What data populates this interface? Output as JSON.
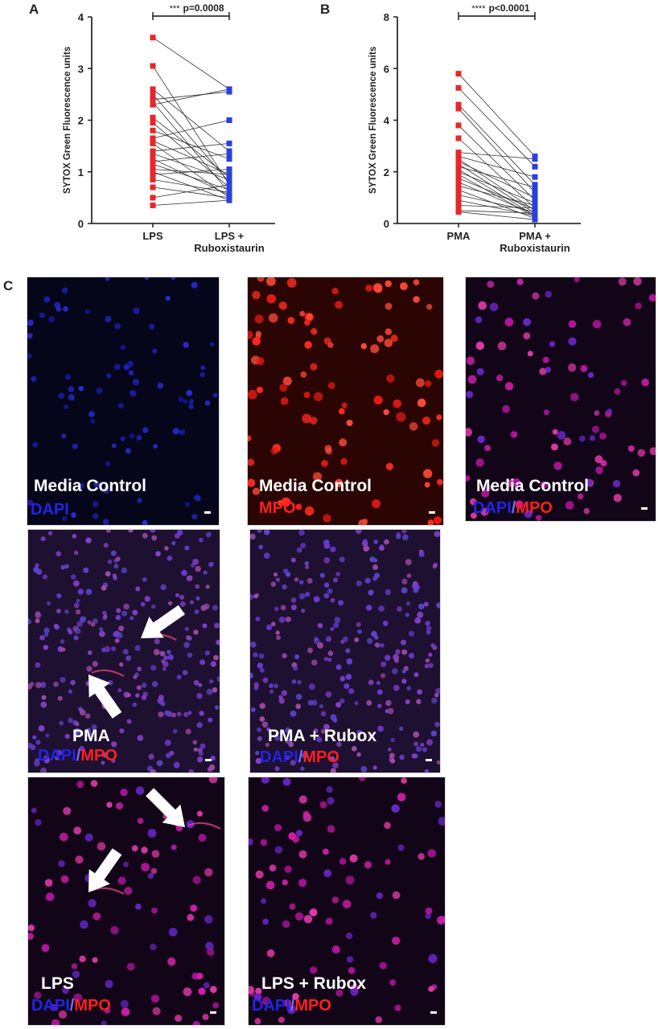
{
  "panels": {
    "a_letter": "A",
    "b_letter": "B",
    "c_letter": "C"
  },
  "chart_data": [
    {
      "id": "A",
      "type": "scatter",
      "ylabel": "SYTOX Green Fluorescence units",
      "xlabel": "",
      "categories": [
        "LPS",
        "LPS + Ruboxistaurin"
      ],
      "ylim": [
        0,
        4
      ],
      "yticks": [
        0,
        1,
        2,
        3,
        4
      ],
      "colors": [
        "#e8262a",
        "#2b3fe0"
      ],
      "significance": {
        "stars": "***",
        "text": "p=0.0008"
      },
      "pairs": [
        [
          3.6,
          2.6
        ],
        [
          3.05,
          0.75
        ],
        [
          2.6,
          1.4
        ],
        [
          2.5,
          0.8
        ],
        [
          2.4,
          2.55
        ],
        [
          2.35,
          0.6
        ],
        [
          2.3,
          2.6
        ],
        [
          2.05,
          0.9
        ],
        [
          1.95,
          0.7
        ],
        [
          1.8,
          1.25
        ],
        [
          1.65,
          2.0
        ],
        [
          1.6,
          0.95
        ],
        [
          1.55,
          0.5
        ],
        [
          1.4,
          1.55
        ],
        [
          1.35,
          0.85
        ],
        [
          1.25,
          0.55
        ],
        [
          1.2,
          1.35
        ],
        [
          1.15,
          0.65
        ],
        [
          1.05,
          0.95
        ],
        [
          1.0,
          0.45
        ],
        [
          0.95,
          1.05
        ],
        [
          0.85,
          0.6
        ],
        [
          0.7,
          0.5
        ],
        [
          0.5,
          0.75
        ],
        [
          0.35,
          0.45
        ]
      ]
    },
    {
      "id": "B",
      "type": "scatter",
      "ylabel": "SYTOX Green Fluorescence units",
      "xlabel": "",
      "categories": [
        "PMA",
        "PMA + Ruboxistaurin"
      ],
      "ylim": [
        0,
        8
      ],
      "yticks": [
        0,
        2,
        4,
        6,
        8
      ],
      "colors": [
        "#e8262a",
        "#2b3fe0"
      ],
      "significance": {
        "stars": "****",
        "text": "p<0.0001"
      },
      "pairs": [
        [
          5.8,
          2.6
        ],
        [
          5.25,
          2.2
        ],
        [
          4.6,
          1.5
        ],
        [
          4.45,
          1.2
        ],
        [
          3.8,
          0.9
        ],
        [
          3.3,
          0.6
        ],
        [
          2.75,
          2.5
        ],
        [
          2.6,
          1.8
        ],
        [
          2.5,
          0.5
        ],
        [
          2.4,
          1.0
        ],
        [
          2.3,
          0.4
        ],
        [
          2.2,
          1.4
        ],
        [
          2.1,
          0.3
        ],
        [
          2.0,
          0.8
        ],
        [
          1.9,
          0.25
        ],
        [
          1.75,
          0.55
        ],
        [
          1.6,
          0.35
        ],
        [
          1.45,
          0.7
        ],
        [
          1.3,
          0.2
        ],
        [
          1.1,
          0.45
        ],
        [
          0.9,
          0.3
        ],
        [
          0.7,
          0.6
        ],
        [
          0.5,
          0.4
        ],
        [
          0.45,
          0.15
        ]
      ]
    }
  ],
  "micrographs": [
    {
      "name": "media-control-dapi",
      "title": "Media Control",
      "stains": [
        "DAPI"
      ],
      "theme": "dapi"
    },
    {
      "name": "media-control-mpo",
      "title": "Media Control",
      "stains": [
        "MPO"
      ],
      "theme": "mpo"
    },
    {
      "name": "media-control-merge",
      "title": "Media Control",
      "stains": [
        "DAPI",
        "MPO"
      ],
      "theme": "merge"
    },
    {
      "name": "pma",
      "title": "PMA",
      "stains": [
        "DAPI",
        "MPO"
      ],
      "theme": "dense",
      "arrows": 2
    },
    {
      "name": "pma-rubox",
      "title": "PMA + Rubox",
      "stains": [
        "DAPI",
        "MPO"
      ],
      "theme": "dense",
      "arrows": 0
    },
    {
      "name": "lps",
      "title": "LPS",
      "stains": [
        "DAPI",
        "MPO"
      ],
      "theme": "merge",
      "arrows": 2
    },
    {
      "name": "lps-rubox",
      "title": "LPS + Rubox",
      "stains": [
        "DAPI",
        "MPO"
      ],
      "theme": "merge",
      "arrows": 0
    }
  ],
  "stain_colors": {
    "DAPI": "#2323e6",
    "MPO": "#ff1f1f",
    "slash": "#7a6cf0"
  }
}
